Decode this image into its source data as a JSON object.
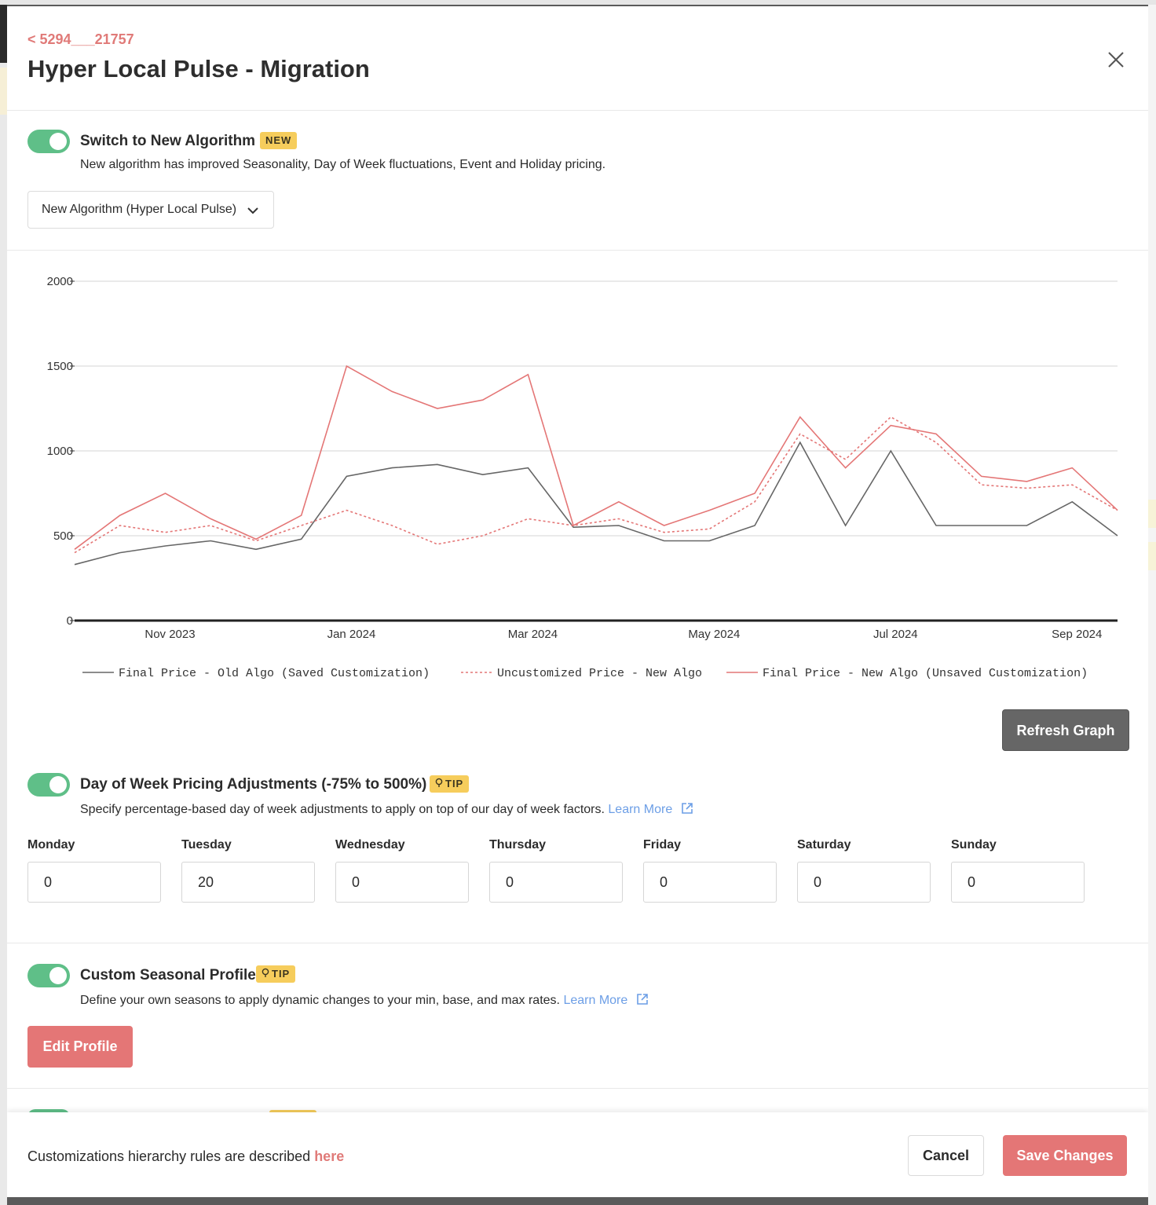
{
  "header": {
    "back_link": "< 5294___21757",
    "title": "Hyper Local Pulse - Migration"
  },
  "algorithm": {
    "toggle_on": true,
    "title": "Switch to New Algorithm",
    "badge": "NEW",
    "description": "New algorithm has improved Seasonality, Day of Week fluctuations, Event and Holiday pricing.",
    "select_value": "New Algorithm (Hyper Local Pulse)"
  },
  "chart_data": {
    "type": "line",
    "title": "",
    "xlabel": "",
    "ylabel": "",
    "ylim": [
      0,
      2000
    ],
    "yticks": [
      "0",
      "500",
      "1000",
      "1500",
      "2000"
    ],
    "xticks": [
      "Nov 2023",
      "Jan 2024",
      "Mar 2024",
      "May 2024",
      "Jul 2024",
      "Sep 2024"
    ],
    "grid": true,
    "legend_position": "bottom",
    "x": [
      "2023-10",
      "2023-11-01",
      "2023-11-15",
      "2023-12-01",
      "2023-12-15",
      "2024-01-01",
      "2024-01-15",
      "2024-02-01",
      "2024-02-15",
      "2024-03-01",
      "2024-03-15",
      "2024-04-01",
      "2024-04-15",
      "2024-05-01",
      "2024-05-15",
      "2024-06-01",
      "2024-06-15",
      "2024-07-01",
      "2024-07-15",
      "2024-08-01",
      "2024-08-15",
      "2024-09-01",
      "2024-09-15",
      "2024-09-30"
    ],
    "series": [
      {
        "name": "Final Price - Old Algo (Saved Customization)",
        "color": "#666666",
        "style": "solid",
        "values": [
          330,
          400,
          440,
          470,
          420,
          480,
          850,
          900,
          920,
          860,
          900,
          550,
          560,
          470,
          470,
          560,
          1050,
          560,
          1000,
          560,
          560,
          560,
          700,
          500
        ]
      },
      {
        "name": "Uncustomized Price - New Algo",
        "color": "#e47676",
        "style": "dashed",
        "values": [
          400,
          560,
          520,
          560,
          470,
          560,
          650,
          560,
          450,
          500,
          600,
          560,
          600,
          520,
          540,
          700,
          1100,
          950,
          1200,
          1050,
          800,
          780,
          800,
          650
        ]
      },
      {
        "name": "Final Price - New Algo (Unsaved Customization)",
        "color": "#e47676",
        "style": "solid",
        "values": [
          420,
          620,
          750,
          600,
          480,
          620,
          1500,
          1350,
          1250,
          1300,
          1450,
          560,
          700,
          560,
          650,
          750,
          1200,
          900,
          1150,
          1100,
          850,
          820,
          900,
          650
        ]
      }
    ]
  },
  "refresh_label": "Refresh Graph",
  "day_of_week": {
    "toggle_on": true,
    "title": "Day of Week Pricing Adjustments (-75% to 500%)",
    "badge": "TIP",
    "description": "Specify percentage-based day of week adjustments to apply on top of our day of week factors.",
    "learn_more": "Learn More",
    "days": [
      {
        "label": "Monday",
        "value": "0"
      },
      {
        "label": "Tuesday",
        "value": "20"
      },
      {
        "label": "Wednesday",
        "value": "0"
      },
      {
        "label": "Thursday",
        "value": "0"
      },
      {
        "label": "Friday",
        "value": "0"
      },
      {
        "label": "Saturday",
        "value": "0"
      },
      {
        "label": "Sunday",
        "value": "0"
      }
    ]
  },
  "seasonal": {
    "toggle_on": true,
    "title": "Custom Seasonal Profile",
    "badge": "TIP",
    "description": "Define your own seasons to apply dynamic changes to your min, base, and max rates.",
    "learn_more": "Learn More",
    "edit_label": "Edit Profile"
  },
  "footer": {
    "text": "Customizations hierarchy rules are described",
    "link": "here",
    "cancel_label": "Cancel",
    "save_label": "Save Changes"
  },
  "colors": {
    "accent": "#e47676",
    "toggle": "#5fbf88",
    "badge": "#f6cd5c",
    "link": "#6c9ee6"
  }
}
